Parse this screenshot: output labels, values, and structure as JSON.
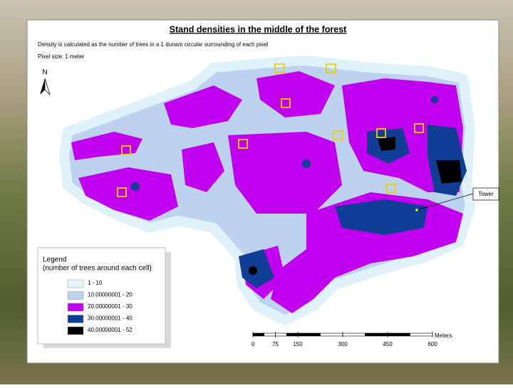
{
  "header": {
    "title": "Stand densities in the middle of the forest",
    "notes": [
      "Density is calculated as the number of trees in a  1 dunam circular surrounding of each pixel",
      "Pixel size: 1 meter"
    ]
  },
  "north_arrow": "N",
  "legend": {
    "title": "Legend",
    "subtitle": "(number of trees around each cell)",
    "items": [
      {
        "label": "1 - 10",
        "color": "#e4f6fb"
      },
      {
        "label": "10.00000001 - 20",
        "color": "#bcd2ee"
      },
      {
        "label": "20.00000001 - 30",
        "color": "#c200f0"
      },
      {
        "label": "30.00000001 - 40",
        "color": "#103e96"
      },
      {
        "label": "40.00000001 - 52",
        "color": "#000000"
      }
    ]
  },
  "annotation": "Tower",
  "scale_bar": {
    "unit": "Meters",
    "ticks": [
      0,
      75,
      150,
      300,
      450,
      600
    ]
  }
}
